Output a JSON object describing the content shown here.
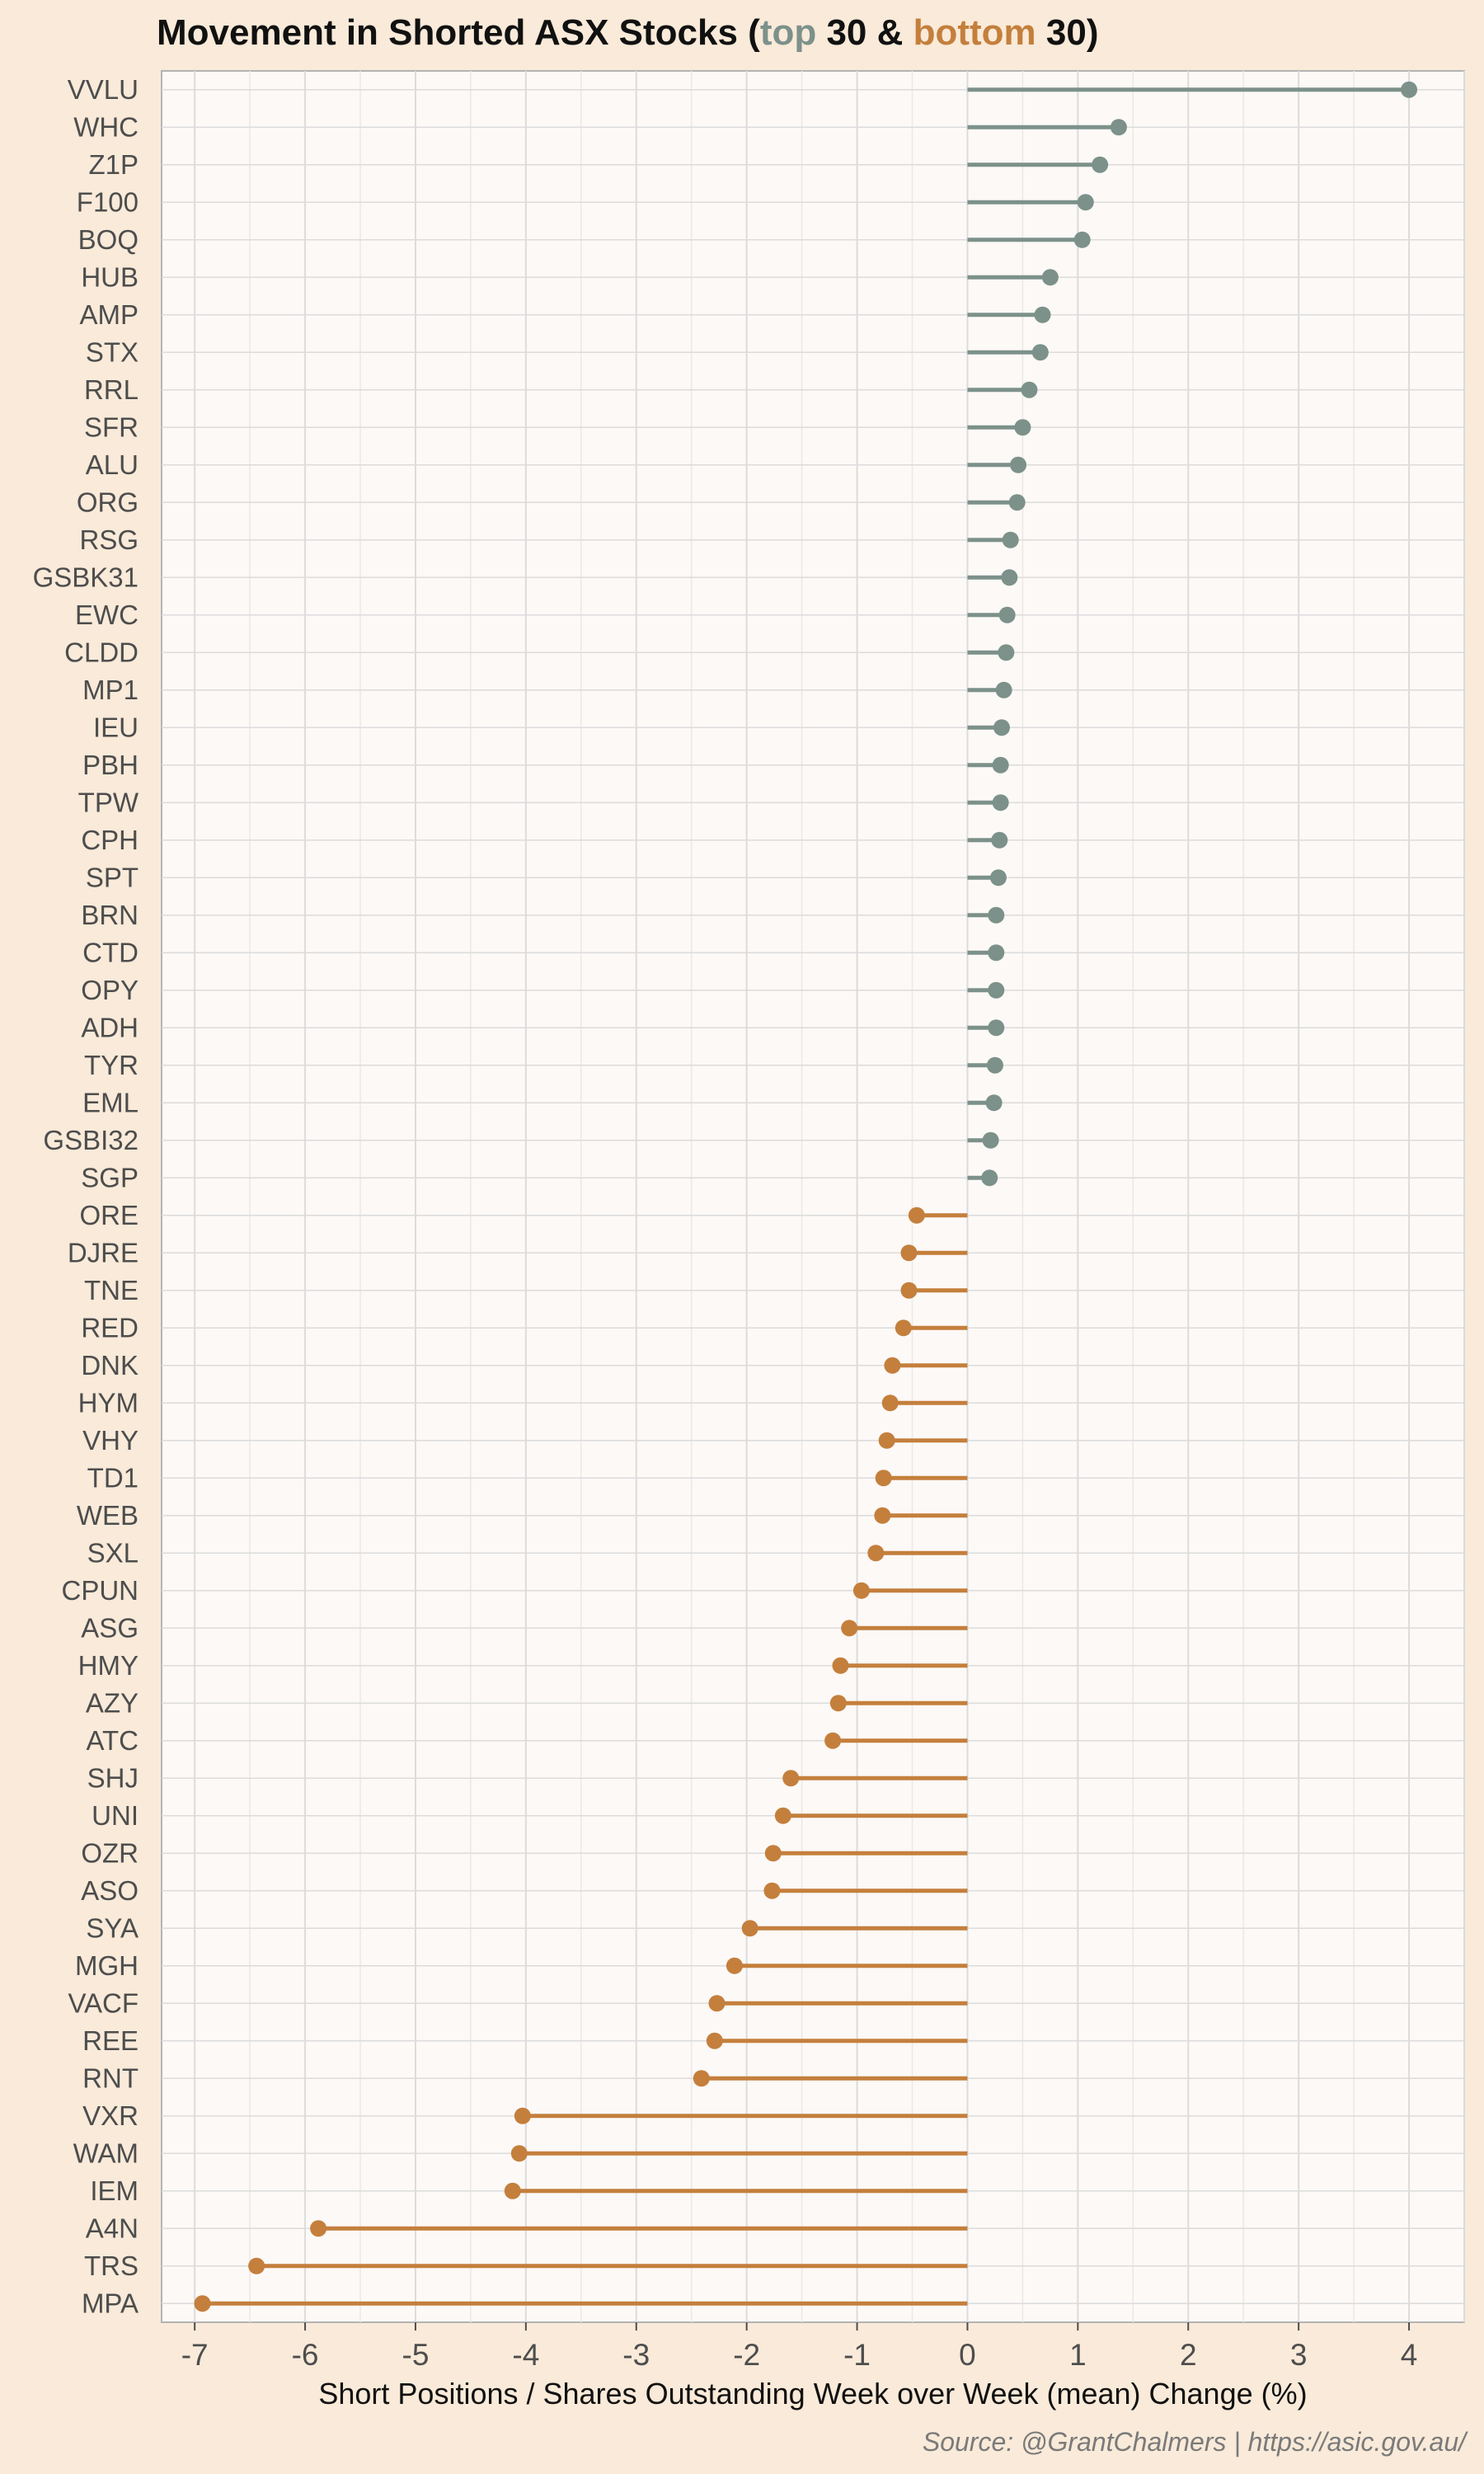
{
  "title": {
    "prefix": "Movement in Shorted ASX Stocks (",
    "top_word": "top",
    "middle": " 30 & ",
    "bottom_word": "bottom",
    "suffix": " 30)"
  },
  "caption": "Source: @GrantChalmers | https://asic.gov.au/",
  "colors": {
    "page_background": "#f9ead9",
    "panel_background": "#fcf9f7",
    "top_series": "#7c918a",
    "bottom_series": "#c47f3c",
    "grid": "#dcdcdc"
  },
  "chart_data": {
    "type": "lollipop",
    "orientation": "horizontal",
    "xlabel": "Short Positions / Shares Outstanding Week over Week (mean) Change (%)",
    "xlim": [
      -7.3,
      4.5
    ],
    "xticks": [
      -7,
      -6,
      -5,
      -4,
      -3,
      -2,
      -1,
      0,
      1,
      2,
      3,
      4
    ],
    "grid": true,
    "series": [
      {
        "group": "top",
        "categories": [
          "VVLU",
          "WHC",
          "Z1P",
          "F100",
          "BOQ",
          "HUB",
          "AMP",
          "STX",
          "RRL",
          "SFR",
          "ALU",
          "ORG",
          "RSG",
          "GSBK31",
          "EWC",
          "CLDD",
          "MP1",
          "IEU",
          "PBH",
          "TPW",
          "CPH",
          "SPT",
          "BRN",
          "CTD",
          "OPY",
          "ADH",
          "TYR",
          "EML",
          "GSBI32",
          "SGP"
        ],
        "values": [
          4.0,
          1.37,
          1.2,
          1.07,
          1.04,
          0.75,
          0.68,
          0.66,
          0.56,
          0.5,
          0.46,
          0.45,
          0.39,
          0.38,
          0.36,
          0.35,
          0.33,
          0.31,
          0.3,
          0.3,
          0.29,
          0.28,
          0.26,
          0.26,
          0.26,
          0.26,
          0.25,
          0.24,
          0.21,
          0.2
        ]
      },
      {
        "group": "bottom",
        "categories": [
          "ORE",
          "DJRE",
          "TNE",
          "RED",
          "DNK",
          "HYM",
          "VHY",
          "TD1",
          "WEB",
          "SXL",
          "CPUN",
          "ASG",
          "HMY",
          "AZY",
          "ATC",
          "SHJ",
          "UNI",
          "OZR",
          "ASO",
          "SYA",
          "MGH",
          "VACF",
          "REE",
          "RNT",
          "VXR",
          "WAM",
          "IEM",
          "A4N",
          "TRS",
          "MPA"
        ],
        "values": [
          -0.46,
          -0.53,
          -0.53,
          -0.58,
          -0.68,
          -0.7,
          -0.73,
          -0.76,
          -0.77,
          -0.83,
          -0.96,
          -1.07,
          -1.15,
          -1.17,
          -1.22,
          -1.6,
          -1.67,
          -1.76,
          -1.77,
          -1.97,
          -2.11,
          -2.27,
          -2.29,
          -2.41,
          -4.03,
          -4.06,
          -4.12,
          -5.88,
          -6.44,
          -6.93
        ]
      }
    ]
  }
}
